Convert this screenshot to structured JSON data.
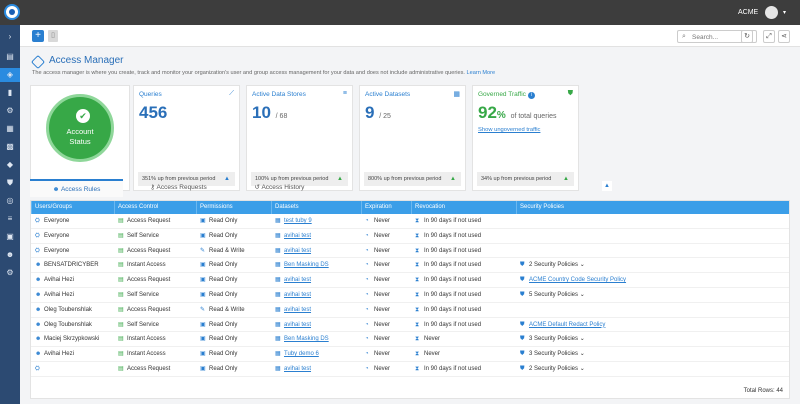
{
  "topbar": {
    "org_name": "ACME",
    "caret": "▾"
  },
  "sidebar": {
    "icons": [
      "expand-icon",
      "home-icon",
      "access-manager-icon",
      "clipboard-icon",
      "settings-icon",
      "table-icon",
      "grid-icon",
      "tag-icon",
      "shield-icon",
      "eye-off-icon",
      "database-icon",
      "user-icon",
      "face-icon",
      "gear-icon"
    ]
  },
  "toolbar": {
    "add_label": "+",
    "search_placeholder": "Search..."
  },
  "page": {
    "title": "Access Manager",
    "description": "The access manager is where you create, track and monitor your organization's user and group access management for your data and does not include administrative queries.",
    "learn_more": "Learn More"
  },
  "status_card": {
    "line1": "Account",
    "line2": "Status"
  },
  "stats": [
    {
      "label": "Queries",
      "value": "456",
      "suffix": "",
      "footer": "351% up from previous period",
      "icon": "chart-icon",
      "trend_color": "#2a7fd0"
    },
    {
      "label": "Active Data Stores",
      "value": "10",
      "suffix": "/ 68",
      "footer": "100% up from previous period",
      "icon": "database-icon",
      "trend_color": "#37a847"
    },
    {
      "label": "Active Datasets",
      "value": "9",
      "suffix": "/ 25",
      "footer": "800% up from previous period",
      "icon": "dataset-icon",
      "trend_color": "#37a847"
    },
    {
      "label": "Governed Traffic",
      "value": "92",
      "suffix": "%",
      "extra": "of total queries",
      "link": "Show ungoverned traffic",
      "footer": "34% up from previous period",
      "icon": "shield-check-icon",
      "trend_color": "#37a847"
    }
  ],
  "tabs": [
    "Access Rules",
    "Access Requests",
    "Access History"
  ],
  "table": {
    "columns": [
      "Users/Groups",
      "Access Control",
      "Permissions",
      "Datasets",
      "Expiration",
      "Revocation",
      "Security Policies"
    ],
    "rows": [
      [
        "Everyone",
        "Access Request",
        "Read Only",
        "test tuby 9",
        "Never",
        "In 90 days if not used",
        ""
      ],
      [
        "Everyone",
        "Self Service",
        "Read Only",
        "avihai test",
        "Never",
        "In 90 days if not used",
        ""
      ],
      [
        "Everyone",
        "Access Request",
        "Read & Write",
        "avihai test",
        "Never",
        "In 90 days if not used",
        ""
      ],
      [
        "BENSATDRICYBER",
        "Instant Access",
        "Read Only",
        "Ben Masking DS",
        "Never",
        "In 90 days if not used",
        "2 Security Policies"
      ],
      [
        "Avihai Hezi",
        "Access Request",
        "Read Only",
        "avihai test",
        "Never",
        "In 90 days if not used",
        "ACME Country Code Security Policy"
      ],
      [
        "Avihai Hezi",
        "Self Service",
        "Read Only",
        "avihai test",
        "Never",
        "In 90 days if not used",
        "5 Security Policies"
      ],
      [
        "Oleg Toubenshlak",
        "Access Request",
        "Read & Write",
        "avihai test",
        "Never",
        "In 90 days if not used",
        ""
      ],
      [
        "Oleg Toubenshlak",
        "Self Service",
        "Read Only",
        "avihai test",
        "Never",
        "In 90 days if not used",
        "ACME Default Redact Policy"
      ],
      [
        "Maciej Skrzypkowski",
        "Instant Access",
        "Read Only",
        "Ben Masking DS",
        "Never",
        "Never",
        "3 Security Policies"
      ],
      [
        "Avihai Hezi",
        "Instant Access",
        "Read Only",
        "Tuby demo 6",
        "Never",
        "Never",
        "3 Security Policies"
      ],
      [
        "",
        "Access Request",
        "Read Only",
        "avihai test",
        "Never",
        "In 90 days if not used",
        "2 Security Policies"
      ]
    ],
    "total_label": "Total Rows: 44"
  }
}
